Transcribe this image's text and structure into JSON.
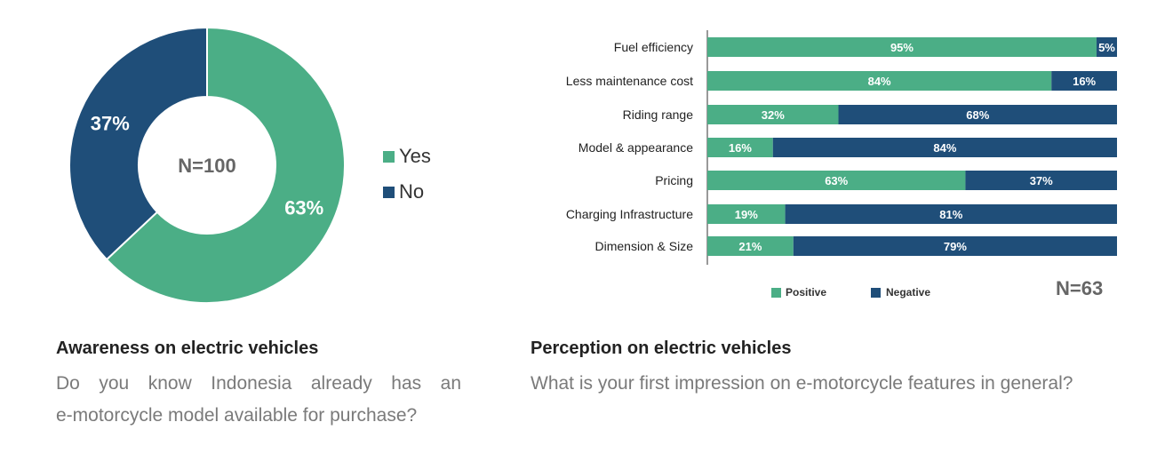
{
  "colors": {
    "positive": "#4bae86",
    "negative": "#1f4e79",
    "center_text": "#666666"
  },
  "chart_data": [
    {
      "type": "pie",
      "variant": "donut",
      "center_label": "N=100",
      "slices": [
        {
          "label": "Yes",
          "value": 63,
          "display": "63%"
        },
        {
          "label": "No",
          "value": 37,
          "display": "37%"
        }
      ],
      "legend": [
        "Yes",
        "No"
      ],
      "legend_position": "right"
    },
    {
      "type": "bar",
      "orientation": "horizontal",
      "stacked": true,
      "categories": [
        "Fuel efficiency",
        "Less maintenance cost",
        "Riding range",
        "Model & appearance",
        "Pricing",
        "Charging Infrastructure",
        "Dimension & Size"
      ],
      "series": [
        {
          "name": "Positive",
          "values": [
            95,
            84,
            32,
            16,
            63,
            19,
            21
          ]
        },
        {
          "name": "Negative",
          "values": [
            5,
            16,
            68,
            84,
            37,
            81,
            79
          ]
        }
      ],
      "value_suffix": "%",
      "xlim": [
        0,
        100
      ],
      "sample_label": "N=63",
      "legend_position": "bottom"
    }
  ],
  "panels": {
    "left": {
      "title": "Awareness on electric vehicles",
      "question_line1": "Do you know Indonesia already has an",
      "question_line2": "e-motorcycle model available for purchase?"
    },
    "right": {
      "title": "Perception on electric vehicles",
      "question": "What is your first impression on e-motorcycle features in general?"
    }
  }
}
